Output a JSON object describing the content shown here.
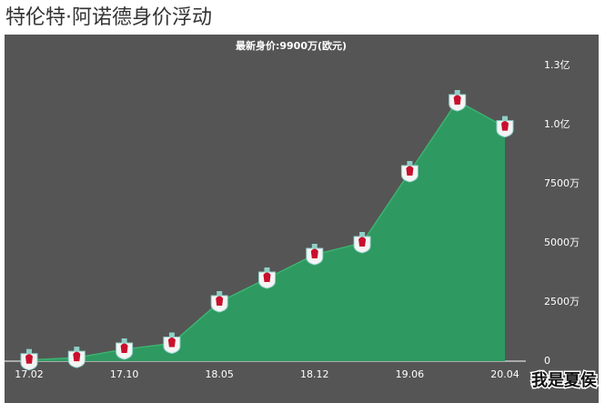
{
  "chart_data": {
    "type": "area",
    "title": "特伦特·阿诺德身价浮动",
    "subtitle": "最新身价:9900万(欧元)",
    "categories": [
      "17.02",
      null,
      "17.10",
      null,
      "18.05",
      null,
      "18.12",
      null,
      "19.06",
      null,
      "20.04"
    ],
    "values": [
      50,
      150,
      500,
      750,
      2500,
      3500,
      4500,
      5000,
      8000,
      11000,
      9900
    ],
    "color": "#2e9960",
    "ylim": [
      0,
      13000
    ],
    "yticks": [
      0,
      {
        "value": 2500,
        "label": "2500万"
      },
      {
        "value": 5000,
        "label": "5000万"
      },
      {
        "value": 7500,
        "label": "7500万"
      },
      {
        "value": 10000,
        "label": "1.0亿"
      },
      {
        "value": 12500,
        "label": "1.3亿"
      }
    ]
  },
  "watermark": "我是夏侯"
}
